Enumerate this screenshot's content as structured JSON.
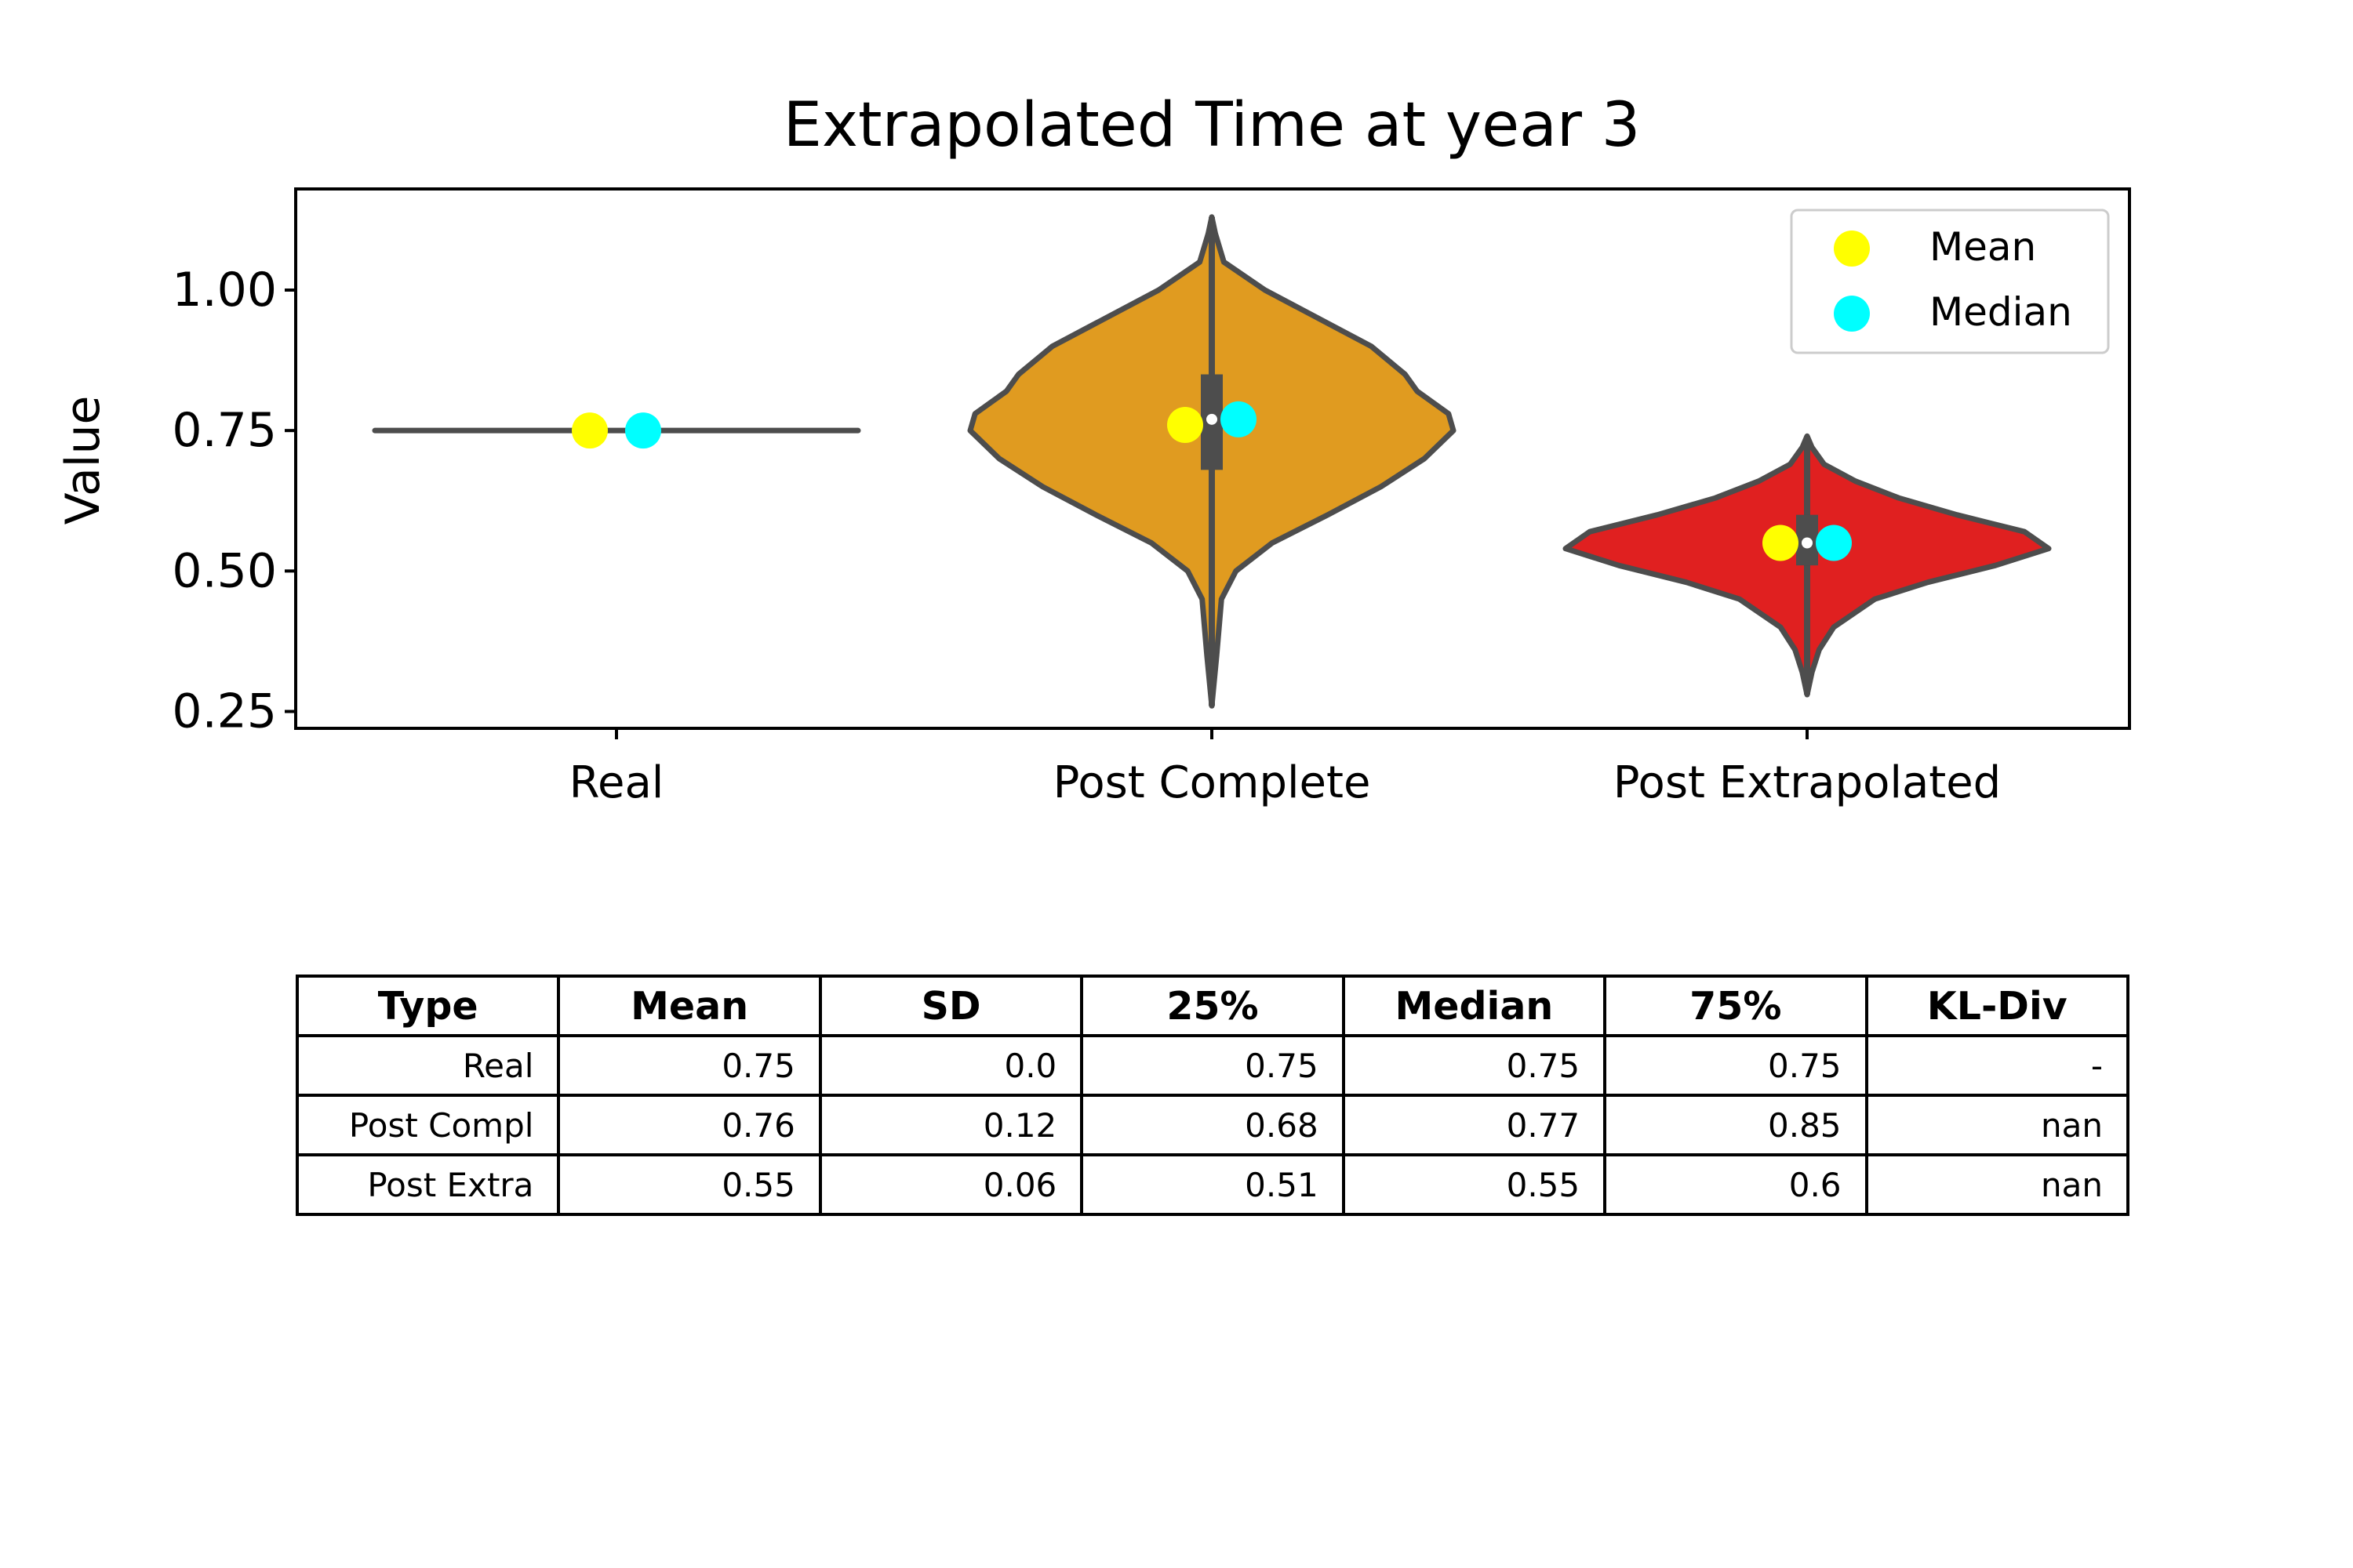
{
  "chart_data": {
    "type": "violin",
    "title": "Extrapolated Time at year 3",
    "ylabel": "Value",
    "xlabel": "",
    "ylim": [
      0.22,
      1.18
    ],
    "yticks": [
      "0.25",
      "0.50",
      "0.75",
      "1.00"
    ],
    "categories": [
      "Real",
      "Post Complete",
      "Post Extrapolated"
    ],
    "legend": {
      "position": "top-right",
      "entries": [
        "Mean",
        "Median"
      ]
    },
    "colors": {
      "Real": "#555555",
      "Post Complete": "#e09b20",
      "Post Extrapolated": "#e02020",
      "outline": "#4d4d4d",
      "mean": "#ffff00",
      "median": "#00ffff"
    },
    "series": [
      {
        "category": "Real",
        "mean": 0.75,
        "median": 0.75,
        "q1": 0.75,
        "q3": 0.75,
        "min": 0.75,
        "max": 0.75,
        "profile": []
      },
      {
        "category": "Post Complete",
        "mean": 0.76,
        "median": 0.77,
        "q1": 0.68,
        "q3": 0.85,
        "min": 0.26,
        "max": 1.13,
        "profile": [
          [
            0.26,
            0.0
          ],
          [
            0.35,
            0.02
          ],
          [
            0.45,
            0.04
          ],
          [
            0.5,
            0.1
          ],
          [
            0.55,
            0.25
          ],
          [
            0.6,
            0.48
          ],
          [
            0.65,
            0.7
          ],
          [
            0.7,
            0.88
          ],
          [
            0.75,
            1.0
          ],
          [
            0.78,
            0.98
          ],
          [
            0.82,
            0.85
          ],
          [
            0.85,
            0.8
          ],
          [
            0.9,
            0.66
          ],
          [
            0.95,
            0.44
          ],
          [
            1.0,
            0.22
          ],
          [
            1.05,
            0.05
          ],
          [
            1.1,
            0.015
          ],
          [
            1.13,
            0.0
          ]
        ]
      },
      {
        "category": "Post Extrapolated",
        "mean": 0.55,
        "median": 0.55,
        "q1": 0.51,
        "q3": 0.6,
        "min": 0.28,
        "max": 0.74,
        "profile": [
          [
            0.28,
            0.0
          ],
          [
            0.32,
            0.02
          ],
          [
            0.36,
            0.05
          ],
          [
            0.4,
            0.11
          ],
          [
            0.45,
            0.28
          ],
          [
            0.48,
            0.5
          ],
          [
            0.51,
            0.78
          ],
          [
            0.54,
            1.0
          ],
          [
            0.57,
            0.9
          ],
          [
            0.6,
            0.62
          ],
          [
            0.63,
            0.38
          ],
          [
            0.66,
            0.2
          ],
          [
            0.69,
            0.07
          ],
          [
            0.72,
            0.02
          ],
          [
            0.74,
            0.0
          ]
        ]
      }
    ]
  },
  "table": {
    "headers": [
      "Type",
      "Mean",
      "SD",
      "25%",
      "Median",
      "75%",
      "KL-Div"
    ],
    "rows": [
      [
        "Real",
        "0.75",
        "0.0",
        "0.75",
        "0.75",
        "0.75",
        "-"
      ],
      [
        "Post Compl",
        "0.76",
        "0.12",
        "0.68",
        "0.77",
        "0.85",
        "nan"
      ],
      [
        "Post Extra",
        "0.55",
        "0.06",
        "0.51",
        "0.55",
        "0.6",
        "nan"
      ]
    ]
  }
}
